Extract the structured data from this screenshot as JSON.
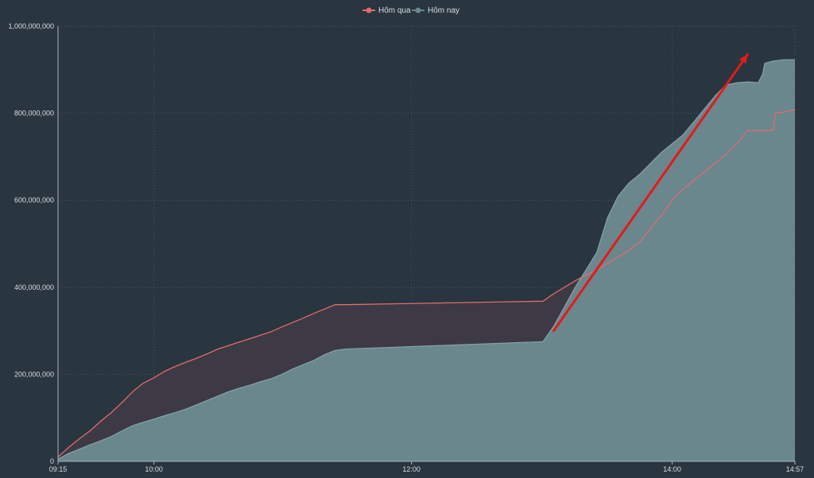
{
  "chart_data": {
    "type": "area",
    "title": "",
    "xlabel": "",
    "ylabel": "",
    "ylim": [
      0,
      1000000000
    ],
    "xlim": [
      "09:15",
      "14:57"
    ],
    "grid": true,
    "legend_position": "top-center",
    "x_tick_labels": [
      "09:15",
      "10:00",
      "12:00",
      "14:00",
      "14:57"
    ],
    "y_tick_labels": [
      "0",
      "200,000,000",
      "400,000,000",
      "600,000,000",
      "800,000,000",
      "1,000,000,000"
    ],
    "series": [
      {
        "name": "Hôm qua",
        "color": "#e06c6c",
        "points": [
          [
            "09:15",
            10000000
          ],
          [
            "09:20",
            32000000
          ],
          [
            "09:25",
            52000000
          ],
          [
            "09:30",
            70000000
          ],
          [
            "09:35",
            92000000
          ],
          [
            "09:40",
            112000000
          ],
          [
            "09:45",
            135000000
          ],
          [
            "09:50",
            160000000
          ],
          [
            "09:55",
            180000000
          ],
          [
            "10:00",
            192000000
          ],
          [
            "10:05",
            207000000
          ],
          [
            "10:10",
            218000000
          ],
          [
            "10:15",
            228000000
          ],
          [
            "10:20",
            237000000
          ],
          [
            "10:25",
            247000000
          ],
          [
            "10:30",
            258000000
          ],
          [
            "10:35",
            266000000
          ],
          [
            "10:40",
            274000000
          ],
          [
            "10:45",
            282000000
          ],
          [
            "10:50",
            290000000
          ],
          [
            "10:55",
            298000000
          ],
          [
            "11:00",
            309000000
          ],
          [
            "11:05",
            319000000
          ],
          [
            "11:10",
            329000000
          ],
          [
            "11:15",
            340000000
          ],
          [
            "11:20",
            350000000
          ],
          [
            "11:25",
            360000000
          ],
          [
            "11:30",
            360000000
          ],
          [
            "13:00",
            368000000
          ],
          [
            "13:05",
            385000000
          ],
          [
            "13:10",
            400000000
          ],
          [
            "13:15",
            415000000
          ],
          [
            "13:20",
            428000000
          ],
          [
            "13:25",
            440000000
          ],
          [
            "13:30",
            455000000
          ],
          [
            "13:35",
            470000000
          ],
          [
            "13:40",
            485000000
          ],
          [
            "13:45",
            505000000
          ],
          [
            "13:50",
            535000000
          ],
          [
            "13:55",
            565000000
          ],
          [
            "14:00",
            600000000
          ],
          [
            "14:05",
            625000000
          ],
          [
            "14:10",
            645000000
          ],
          [
            "14:15",
            665000000
          ],
          [
            "14:20",
            685000000
          ],
          [
            "14:25",
            705000000
          ],
          [
            "14:30",
            730000000
          ],
          [
            "14:35",
            760000000
          ],
          [
            "14:40",
            760000000
          ],
          [
            "14:45",
            760000000
          ],
          [
            "14:47",
            762000000
          ],
          [
            "14:48",
            800000000
          ],
          [
            "14:52",
            803000000
          ],
          [
            "14:57",
            808000000
          ]
        ]
      },
      {
        "name": "Hôm nay",
        "color": "#6a878e",
        "points": [
          [
            "09:15",
            5000000
          ],
          [
            "09:20",
            18000000
          ],
          [
            "09:25",
            28000000
          ],
          [
            "09:30",
            38000000
          ],
          [
            "09:35",
            47000000
          ],
          [
            "09:40",
            57000000
          ],
          [
            "09:45",
            70000000
          ],
          [
            "09:50",
            82000000
          ],
          [
            "09:55",
            90000000
          ],
          [
            "10:00",
            97000000
          ],
          [
            "10:05",
            105000000
          ],
          [
            "10:10",
            112000000
          ],
          [
            "10:15",
            120000000
          ],
          [
            "10:20",
            130000000
          ],
          [
            "10:25",
            140000000
          ],
          [
            "10:30",
            150000000
          ],
          [
            "10:35",
            160000000
          ],
          [
            "10:40",
            168000000
          ],
          [
            "10:45",
            175000000
          ],
          [
            "10:50",
            183000000
          ],
          [
            "10:55",
            190000000
          ],
          [
            "11:00",
            200000000
          ],
          [
            "11:05",
            212000000
          ],
          [
            "11:10",
            222000000
          ],
          [
            "11:15",
            232000000
          ],
          [
            "11:20",
            245000000
          ],
          [
            "11:25",
            255000000
          ],
          [
            "11:30",
            258000000
          ],
          [
            "13:00",
            275000000
          ],
          [
            "13:05",
            310000000
          ],
          [
            "13:10",
            355000000
          ],
          [
            "13:15",
            400000000
          ],
          [
            "13:20",
            440000000
          ],
          [
            "13:25",
            480000000
          ],
          [
            "13:30",
            560000000
          ],
          [
            "13:35",
            610000000
          ],
          [
            "13:40",
            640000000
          ],
          [
            "13:45",
            660000000
          ],
          [
            "13:50",
            685000000
          ],
          [
            "13:55",
            710000000
          ],
          [
            "14:00",
            730000000
          ],
          [
            "14:05",
            750000000
          ],
          [
            "14:10",
            780000000
          ],
          [
            "14:15",
            810000000
          ],
          [
            "14:20",
            840000000
          ],
          [
            "14:25",
            865000000
          ],
          [
            "14:30",
            870000000
          ],
          [
            "14:35",
            872000000
          ],
          [
            "14:40",
            870000000
          ],
          [
            "14:42",
            890000000
          ],
          [
            "14:43",
            915000000
          ],
          [
            "14:47",
            920000000
          ],
          [
            "14:52",
            923000000
          ],
          [
            "14:57",
            923000000
          ]
        ]
      }
    ],
    "annotations": [
      {
        "type": "arrow",
        "color": "#e11b1b",
        "from": [
          "13:05",
          300000000
        ],
        "to": [
          "14:35",
          935000000
        ]
      }
    ]
  }
}
